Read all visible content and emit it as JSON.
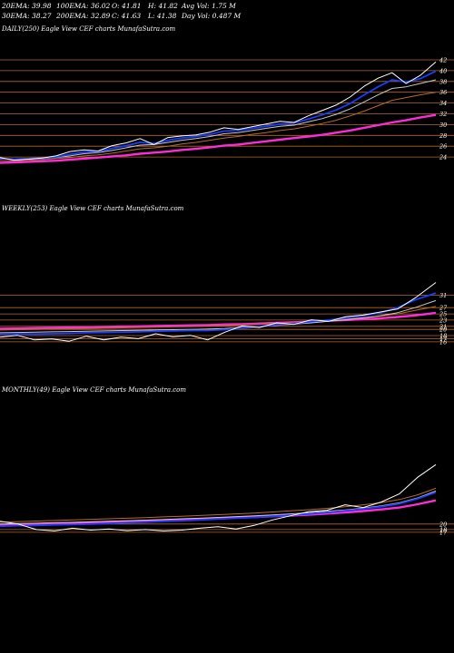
{
  "header": {
    "row1": [
      "20EMA: 39.98",
      "100EMA: 36.02",
      "O: 41.81",
      "H: 41.82",
      "Avg Vol: 1.75 M"
    ],
    "row2": [
      "30EMA: 38.27",
      "200EMA: 32.89",
      "C: 41.63",
      "L: 41.38",
      "Day Vol: 0.487 M"
    ]
  },
  "panels": {
    "daily": {
      "title": "DAILY(250) Eagle   View  CEF charts MunafaSutra.com"
    },
    "weekly": {
      "title": "WEEKLY(253) Eagle   View  CEF charts MunafaSutra.com"
    },
    "monthly": {
      "title": "MONTHLY(49) Eagle   View  CEF charts MunafaSutra.com"
    }
  },
  "colors": {
    "price": "#ffffff",
    "ema_short": "#1a3cff",
    "ema_long": "#ff2bd6",
    "ema_mid": "#c8c8c8",
    "ema_band": "#b86a28",
    "grid": "#b8672a"
  },
  "chart_data": [
    {
      "type": "line",
      "name": "daily",
      "yticks": [
        42,
        40,
        38,
        36,
        34,
        32,
        30,
        28,
        26,
        24
      ],
      "ylim": [
        22.5,
        43
      ],
      "x": [
        0,
        8,
        16,
        24,
        32,
        40,
        48,
        56,
        64,
        72,
        80,
        88,
        96,
        104,
        112,
        120,
        128,
        136,
        144,
        152,
        160,
        168,
        176,
        184,
        192,
        200,
        208,
        216,
        224,
        232,
        240,
        249
      ],
      "series": [
        {
          "key": "price",
          "values": [
            23.9,
            23.4,
            23.6,
            23.8,
            24.2,
            25.0,
            25.3,
            25.1,
            26.1,
            26.6,
            27.4,
            26.3,
            27.6,
            27.9,
            28.1,
            28.6,
            29.4,
            29.1,
            29.6,
            30.1,
            30.6,
            30.4,
            31.6,
            32.6,
            33.6,
            35.1,
            37.1,
            38.6,
            39.6,
            37.6,
            39.1,
            41.6
          ]
        },
        {
          "key": "ema_short",
          "values": [
            23.7,
            23.6,
            23.7,
            23.8,
            24.0,
            24.5,
            24.9,
            25.0,
            25.6,
            26.1,
            26.7,
            26.5,
            27.1,
            27.5,
            27.8,
            28.2,
            28.8,
            28.9,
            29.3,
            29.7,
            30.1,
            30.3,
            31.0,
            31.8,
            32.7,
            33.9,
            35.5,
            37.0,
            38.3,
            37.9,
            38.5,
            39.9
          ]
        },
        {
          "key": "ema_mid",
          "values": [
            23.6,
            23.6,
            23.6,
            23.7,
            23.9,
            24.2,
            24.6,
            24.8,
            25.2,
            25.7,
            26.2,
            26.3,
            26.7,
            27.1,
            27.4,
            27.8,
            28.3,
            28.5,
            28.9,
            29.3,
            29.7,
            29.9,
            30.5,
            31.1,
            31.9,
            32.9,
            34.2,
            35.5,
            36.7,
            37.0,
            37.6,
            38.3
          ]
        },
        {
          "key": "ema_band",
          "values": [
            23.3,
            23.3,
            23.4,
            23.5,
            23.7,
            23.9,
            24.2,
            24.4,
            24.7,
            25.1,
            25.5,
            25.7,
            26.0,
            26.4,
            26.7,
            27.1,
            27.5,
            27.8,
            28.2,
            28.5,
            28.9,
            29.2,
            29.7,
            30.2,
            30.8,
            31.6,
            32.5,
            33.5,
            34.5,
            35.0,
            35.5,
            36.0
          ]
        },
        {
          "key": "ema_long",
          "values": [
            22.9,
            23.0,
            23.1,
            23.2,
            23.3,
            23.5,
            23.7,
            23.9,
            24.1,
            24.3,
            24.6,
            24.8,
            25.0,
            25.3,
            25.5,
            25.8,
            26.1,
            26.3,
            26.6,
            26.9,
            27.2,
            27.5,
            27.8,
            28.1,
            28.5,
            28.9,
            29.4,
            29.9,
            30.4,
            30.8,
            31.3,
            31.8
          ]
        }
      ]
    },
    {
      "type": "line",
      "name": "weekly",
      "yticks": [
        31,
        27,
        25,
        23,
        21,
        20,
        18,
        17,
        16
      ],
      "ylim": [
        14.5,
        37
      ],
      "x": [
        0,
        10,
        20,
        30,
        40,
        50,
        60,
        70,
        80,
        90,
        100,
        110,
        120,
        130,
        140,
        150,
        160,
        170,
        180,
        190,
        200,
        210,
        220,
        230,
        240,
        252
      ],
      "series": [
        {
          "key": "price",
          "values": [
            17.5,
            18.1,
            16.6,
            16.9,
            16.2,
            17.8,
            16.6,
            17.5,
            17.0,
            18.6,
            17.6,
            18.1,
            16.6,
            19.1,
            21.1,
            20.6,
            22.1,
            21.6,
            23.1,
            22.6,
            24.1,
            24.6,
            25.6,
            26.6,
            30.1,
            35.1
          ]
        },
        {
          "key": "ema_short",
          "values": [
            18.5,
            18.6,
            18.5,
            18.6,
            18.7,
            18.9,
            19.0,
            19.1,
            19.2,
            19.4,
            19.5,
            19.6,
            19.6,
            19.9,
            20.4,
            20.9,
            21.5,
            21.9,
            22.5,
            23.0,
            23.7,
            24.4,
            25.4,
            27.0,
            29.5,
            31.7
          ]
        },
        {
          "key": "ema_mid",
          "values": [
            18.9,
            19.0,
            19.1,
            19.2,
            19.3,
            19.4,
            19.5,
            19.6,
            19.7,
            19.8,
            19.9,
            20.0,
            20.1,
            20.3,
            20.6,
            20.9,
            21.3,
            21.7,
            22.1,
            22.6,
            23.1,
            23.7,
            24.4,
            25.4,
            27.0,
            29.3
          ]
        },
        {
          "key": "ema_band",
          "values": [
            19.8,
            19.9,
            20.0,
            20.1,
            20.2,
            20.3,
            20.4,
            20.5,
            20.6,
            20.7,
            20.8,
            20.9,
            21.0,
            21.2,
            21.4,
            21.6,
            21.9,
            22.2,
            22.5,
            22.9,
            23.3,
            23.8,
            24.3,
            25.0,
            26.1,
            27.4
          ]
        },
        {
          "key": "ema_long",
          "values": [
            20.2,
            20.3,
            20.4,
            20.5,
            20.6,
            20.7,
            20.8,
            20.9,
            21.0,
            21.1,
            21.2,
            21.3,
            21.4,
            21.6,
            21.7,
            21.9,
            22.1,
            22.3,
            22.5,
            22.8,
            23.0,
            23.3,
            23.6,
            24.0,
            24.5,
            25.3
          ]
        }
      ]
    },
    {
      "type": "line",
      "name": "monthly",
      "yticks": [
        20,
        18,
        17
      ],
      "ylim": [
        14,
        44
      ],
      "x": [
        0,
        2,
        4,
        6,
        8,
        10,
        12,
        14,
        16,
        18,
        20,
        22,
        24,
        26,
        28,
        30,
        32,
        34,
        36,
        38,
        40,
        42,
        44,
        46,
        48
      ],
      "series": [
        {
          "key": "price",
          "values": [
            21.0,
            20.0,
            18.0,
            17.5,
            18.5,
            17.8,
            18.2,
            17.6,
            18.0,
            17.5,
            17.8,
            18.5,
            19.0,
            18.2,
            19.5,
            21.5,
            23.0,
            24.5,
            25.0,
            27.0,
            26.0,
            28.0,
            31.0,
            37.0,
            41.6
          ]
        },
        {
          "key": "ema_short",
          "values": [
            19.2,
            19.4,
            19.5,
            19.7,
            19.8,
            20.0,
            20.2,
            20.5,
            20.7,
            21.0,
            21.2,
            21.5,
            21.8,
            22.1,
            22.4,
            22.8,
            23.2,
            23.7,
            24.2,
            24.8,
            25.5,
            26.3,
            27.4,
            29.2,
            31.5
          ]
        },
        {
          "key": "ema_mid",
          "values": [
            20.0,
            20.2,
            20.3,
            20.5,
            20.6,
            20.8,
            21.0,
            21.2,
            21.4,
            21.6,
            21.9,
            22.1,
            22.4,
            22.7,
            23.0,
            23.3,
            23.7,
            24.1,
            24.6,
            25.1,
            25.8,
            26.6,
            27.7,
            29.5,
            32.0
          ]
        },
        {
          "key": "ema_band",
          "values": [
            20.7,
            20.9,
            21.1,
            21.3,
            21.5,
            21.7,
            21.9,
            22.1,
            22.3,
            22.6,
            22.8,
            23.1,
            23.4,
            23.7,
            24.0,
            24.4,
            24.8,
            25.2,
            25.7,
            26.3,
            27.0,
            27.8,
            28.9,
            30.6,
            33.0
          ]
        },
        {
          "key": "ema_long",
          "values": [
            19.6,
            19.8,
            20.0,
            20.2,
            20.4,
            20.6,
            20.8,
            21.0,
            21.2,
            21.4,
            21.6,
            21.8,
            22.0,
            22.3,
            22.5,
            22.8,
            23.1,
            23.4,
            23.8,
            24.2,
            24.7,
            25.3,
            26.0,
            27.2,
            28.6
          ]
        }
      ]
    }
  ]
}
